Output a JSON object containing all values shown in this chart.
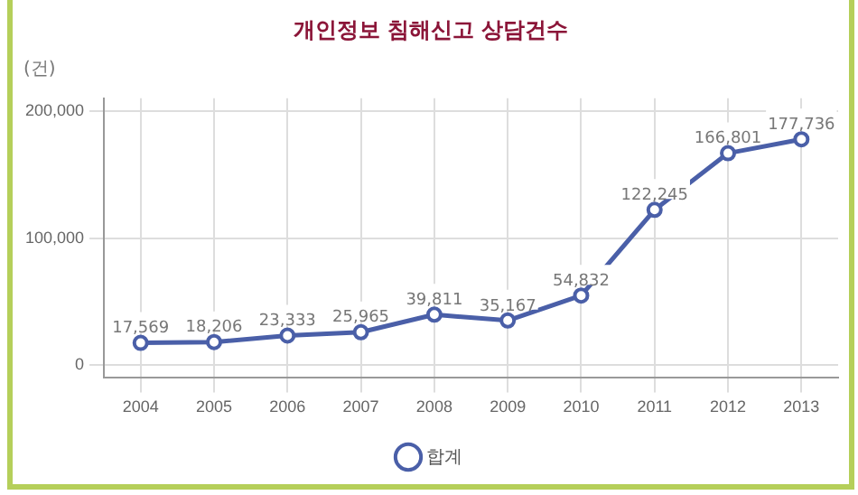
{
  "chart_data": {
    "type": "line",
    "title": "개인정보 침해신고 상담건수",
    "ylabel": "(건)",
    "categories": [
      "2004",
      "2005",
      "2006",
      "2007",
      "2008",
      "2009",
      "2010",
      "2011",
      "2012",
      "2013"
    ],
    "series": [
      {
        "name": "합계",
        "color": "#4a5fa8",
        "values": [
          17569,
          18206,
          23333,
          25965,
          39811,
          35167,
          54832,
          122245,
          166801,
          177736
        ],
        "value_labels": [
          "17,569",
          "18,206",
          "23,333",
          "25,965",
          "39,811",
          "35,167",
          "54,832",
          "122,245",
          "166,801",
          "177,736"
        ]
      }
    ],
    "ylim": [
      -10000,
      210000
    ],
    "yticks": [
      0,
      {
        "value": 100000,
        "label": "100,000"
      },
      {
        "value": 200000,
        "label": "200,000"
      }
    ],
    "grid": true,
    "legend": "bottom",
    "marker": "circle"
  }
}
